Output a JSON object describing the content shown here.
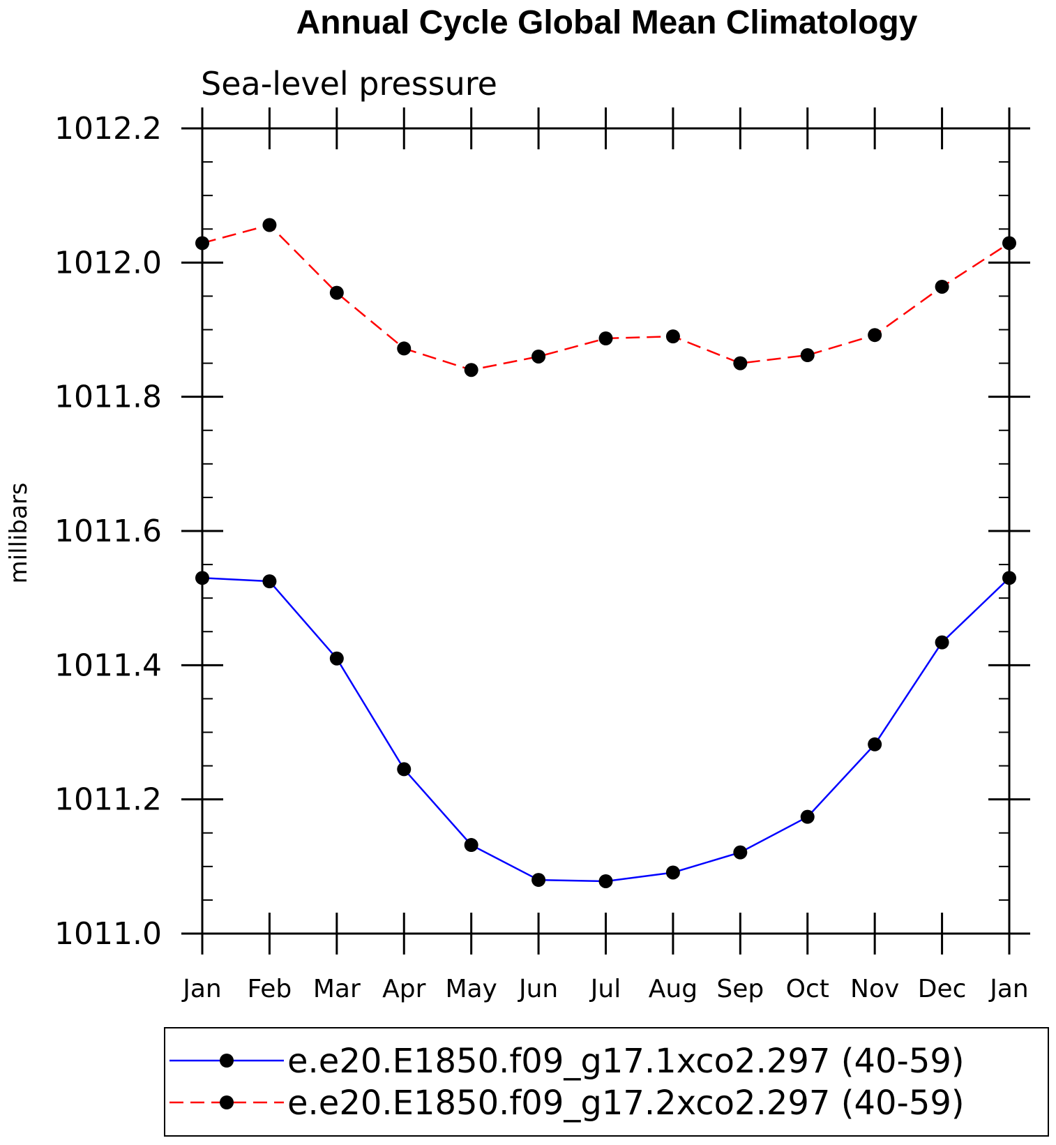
{
  "chart_data": {
    "type": "line",
    "title": "Annual Cycle Global Mean Climatology",
    "subtitle": "Sea-level pressure",
    "ylabel": "millibars",
    "xlabel": "",
    "ylim": [
      1011.0,
      1012.2
    ],
    "yticks": [
      1011.0,
      1011.2,
      1011.4,
      1011.6,
      1011.8,
      1012.0,
      1012.2
    ],
    "ytick_labels": [
      "1011.0",
      "1011.2",
      "1011.4",
      "1011.6",
      "1011.8",
      "1012.0",
      "1012.2"
    ],
    "categories": [
      "Jan",
      "Feb",
      "Mar",
      "Apr",
      "May",
      "Jun",
      "Jul",
      "Aug",
      "Sep",
      "Oct",
      "Nov",
      "Dec",
      "Jan"
    ],
    "grid": false,
    "legend_position": "bottom",
    "series": [
      {
        "name": "e.e20.E1850.f09_g17.1xco2.297 (40-59)",
        "color": "#0000ff",
        "line_style": "solid",
        "marker": "filled-circle",
        "values": [
          1011.53,
          1011.525,
          1011.41,
          1011.245,
          1011.132,
          1011.08,
          1011.078,
          1011.091,
          1011.121,
          1011.174,
          1011.282,
          1011.434,
          1011.53
        ]
      },
      {
        "name": "e.e20.E1850.f09_g17.2xco2.297 (40-59)",
        "color": "#ff0000",
        "line_style": "dashed",
        "marker": "filled-circle",
        "values": [
          1012.029,
          1012.056,
          1011.955,
          1011.872,
          1011.84,
          1011.86,
          1011.887,
          1011.89,
          1011.85,
          1011.862,
          1011.892,
          1011.964,
          1012.029
        ]
      }
    ]
  }
}
